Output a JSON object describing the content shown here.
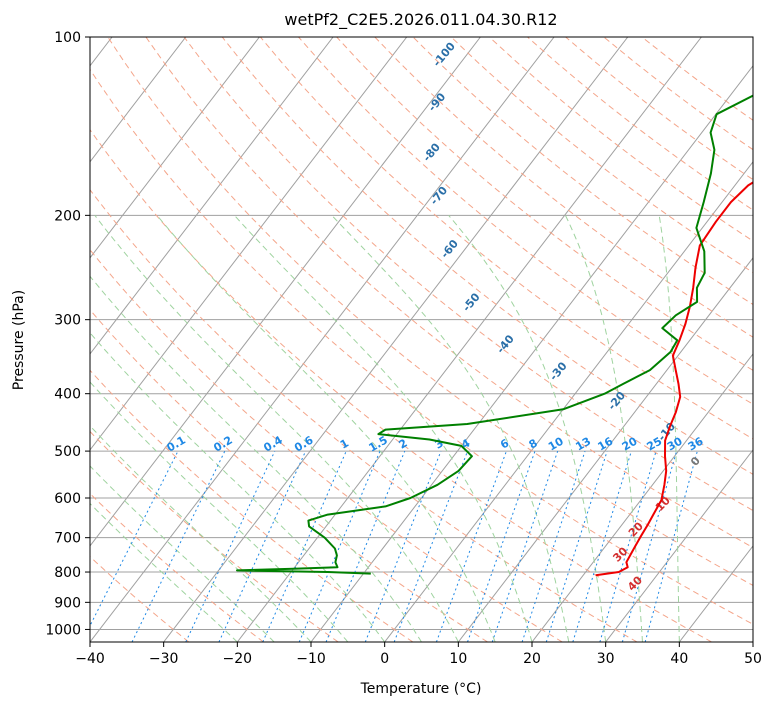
{
  "chart_data": {
    "type": "line",
    "title": "wetPf2_C2E5.2026.011.04.30.R12",
    "xlabel": "Temperature (°C)",
    "ylabel": "Pressure (hPa)",
    "xlim": [
      -40,
      50
    ],
    "ylim": [
      1050,
      100
    ],
    "y_scale": "log",
    "grid": true,
    "x_ticks": [
      -40,
      -30,
      -20,
      -10,
      0,
      10,
      20,
      30,
      40,
      50
    ],
    "x_tick_labels": [
      "−40",
      "−30",
      "−20",
      "−10",
      "0",
      "10",
      "20",
      "30",
      "40",
      "50"
    ],
    "y_ticks": [
      100,
      200,
      300,
      400,
      500,
      600,
      700,
      800,
      900,
      1000
    ],
    "y_tick_labels": [
      "100",
      "200",
      "300",
      "400",
      "500",
      "600",
      "700",
      "800",
      "900",
      "1000"
    ],
    "colors": {
      "temperature": "#ee0000",
      "dewpoint": "#008000",
      "isotherm": "#a0a0a0",
      "dry_adiabat": "#f4a58a",
      "moist_adiabat": "#9fd39f",
      "mixing_ratio": "#1e88e5"
    },
    "series": [
      {
        "points": [
          [
            6.2,
            100
          ],
          [
            8.3,
            110
          ],
          [
            10.2,
            120
          ],
          [
            10.8,
            128
          ],
          [
            9.8,
            140
          ],
          [
            6.5,
            155
          ],
          [
            3.5,
            168
          ],
          [
            1.8,
            178
          ],
          [
            1.2,
            190
          ],
          [
            1.2,
            205
          ],
          [
            1.5,
            225
          ],
          [
            3.2,
            245
          ],
          [
            5.0,
            265
          ],
          [
            6.5,
            285
          ],
          [
            7.7,
            305
          ],
          [
            8.6,
            325
          ],
          [
            9.3,
            345
          ],
          [
            11.2,
            365
          ],
          [
            13.0,
            385
          ],
          [
            14.6,
            405
          ],
          [
            15.6,
            430
          ],
          [
            16.3,
            455
          ],
          [
            17.1,
            480
          ],
          [
            18.7,
            510
          ],
          [
            20.4,
            540
          ],
          [
            21.6,
            570
          ],
          [
            22.8,
            605
          ],
          [
            23.2,
            640
          ],
          [
            23.5,
            665
          ],
          [
            23.8,
            700
          ],
          [
            24.2,
            740
          ],
          [
            24.5,
            770
          ],
          [
            25.2,
            785
          ],
          [
            24.5,
            800
          ],
          [
            21.7,
            810
          ]
        ]
      },
      {
        "points": [
          [
            -1.5,
            100
          ],
          [
            -3.5,
            115
          ],
          [
            -6.7,
            125
          ],
          [
            -9.9,
            135
          ],
          [
            -8.8,
            145
          ],
          [
            -6.5,
            155
          ],
          [
            -4.5,
            170
          ],
          [
            -2.5,
            190
          ],
          [
            -0.8,
            210
          ],
          [
            2.7,
            230
          ],
          [
            5.0,
            250
          ],
          [
            5.5,
            265
          ],
          [
            7.0,
            280
          ],
          [
            5.5,
            295
          ],
          [
            5.0,
            310
          ],
          [
            8.3,
            325
          ],
          [
            8.6,
            340
          ],
          [
            7.7,
            365
          ],
          [
            5.5,
            385
          ],
          [
            4.0,
            400
          ],
          [
            0.0,
            425
          ],
          [
            -11.5,
            450
          ],
          [
            -22.0,
            460
          ],
          [
            -22.5,
            468
          ],
          [
            -15.0,
            478
          ],
          [
            -10.0,
            490
          ],
          [
            -7.5,
            510
          ],
          [
            -7.8,
            540
          ],
          [
            -9.2,
            570
          ],
          [
            -11.5,
            600
          ],
          [
            -14.0,
            620
          ],
          [
            -21.0,
            640
          ],
          [
            -23.0,
            655
          ],
          [
            -22.3,
            670
          ],
          [
            -19.0,
            700
          ],
          [
            -16.5,
            730
          ],
          [
            -15.5,
            750
          ],
          [
            -15.0,
            770
          ],
          [
            -14.2,
            785
          ],
          [
            -20.0,
            790
          ],
          [
            -27.5,
            795
          ],
          [
            -15.0,
            800
          ],
          [
            -9.0,
            805
          ]
        ]
      }
    ],
    "mixing_ratio_labels": [
      "0.1",
      "0.2",
      "0.4",
      "0.6",
      "1",
      "1.5",
      "2",
      "3",
      "4",
      "6",
      "8",
      "10",
      "13",
      "16",
      "20",
      "25",
      "30",
      "36"
    ],
    "mixing_ratio_values": [
      0.1,
      0.2,
      0.4,
      0.6,
      1,
      1.5,
      2,
      3,
      4,
      6,
      8,
      10,
      13,
      16,
      20,
      25,
      30,
      36
    ],
    "moist_adiabat_labels": [
      {
        "text": "-100",
        "x": -52.5,
        "p": 108
      },
      {
        "text": "-90",
        "x": -48.5,
        "p": 130
      },
      {
        "text": "-80",
        "x": -44.0,
        "p": 158
      },
      {
        "text": "-70",
        "x": -38.5,
        "p": 187
      },
      {
        "text": "-60",
        "x": -31.5,
        "p": 230
      },
      {
        "text": "-50",
        "x": -23.0,
        "p": 283
      },
      {
        "text": "-40",
        "x": -14.0,
        "p": 333
      },
      {
        "text": "-30",
        "x": -4.0,
        "p": 370
      },
      {
        "text": "-20",
        "x": 7.0,
        "p": 415
      },
      {
        "text": "-10",
        "x": 17.0,
        "p": 468
      },
      {
        "text": "0",
        "x": 24.0,
        "p": 525
      }
    ],
    "dry_adiabat_labels": [
      {
        "text": "10",
        "x": 24.0,
        "p": 620
      },
      {
        "text": "20",
        "x": 23.0,
        "p": 685
      },
      {
        "text": "30",
        "x": 23.5,
        "p": 755
      },
      {
        "text": "40",
        "x": 28.5,
        "p": 845
      }
    ]
  }
}
